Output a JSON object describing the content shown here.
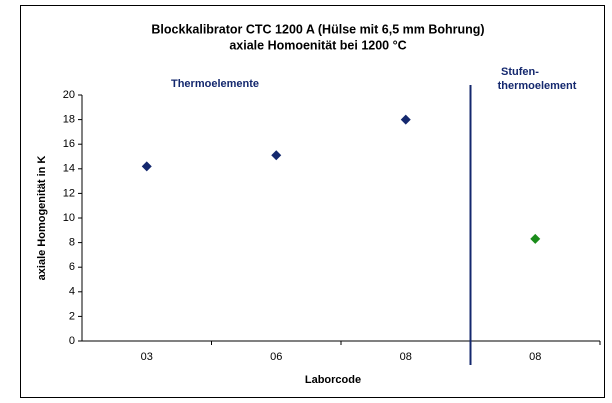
{
  "chart_data": {
    "type": "scatter",
    "title": "Blockkalibrator CTC 1200 A   (Hülse mit 6,5 mm Bohrung)",
    "subtitle": "axiale Homoenität bei 1200 °C",
    "x_label": "Laborcode",
    "y_label": "axiale Homogenität in K",
    "annotations": [
      "Thermoelemente",
      "Stufen-",
      "thermoelement"
    ],
    "categories": [
      "03",
      "06",
      "08",
      "08"
    ],
    "series": [
      {
        "color": "#14286e",
        "values": [
          14.2,
          15.1,
          18.0,
          null
        ]
      },
      {
        "color": "#1a8c1a",
        "values": [
          null,
          null,
          null,
          8.3
        ]
      }
    ],
    "ylim": [
      0,
      20
    ],
    "yticks": [
      0,
      2,
      4,
      6,
      8,
      10,
      12,
      14,
      16,
      18,
      20
    ],
    "grid": false
  }
}
